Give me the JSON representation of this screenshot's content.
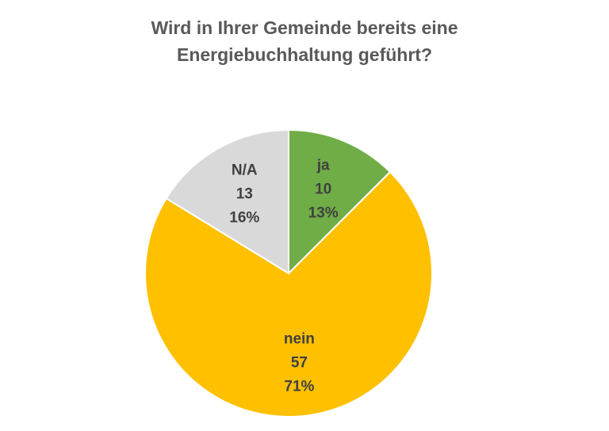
{
  "chart_data": {
    "type": "pie",
    "title": "Wird in Ihrer Gemeinde bereits eine Energiebuchhaltung geführt?",
    "categories": [
      "ja",
      "nein",
      "N/A"
    ],
    "values": [
      10,
      57,
      13
    ],
    "value_labels": [
      "13%",
      "71%",
      "16%"
    ],
    "colors": [
      "#70ad47",
      "#ffc000",
      "#d9d9d9"
    ]
  }
}
